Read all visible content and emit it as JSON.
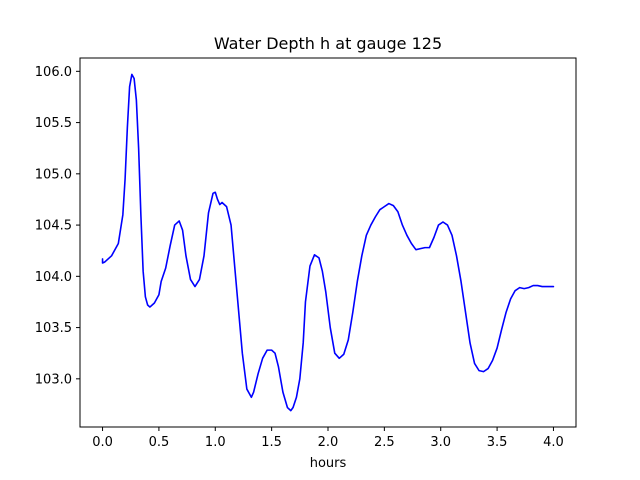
{
  "chart_data": {
    "type": "line",
    "title": "Water Depth h at gauge 125",
    "xlabel": "hours",
    "ylabel": "",
    "xlim": [
      -0.2,
      4.2
    ],
    "ylim": [
      102.53,
      106.13
    ],
    "xticks": [
      0.0,
      0.5,
      1.0,
      1.5,
      2.0,
      2.5,
      3.0,
      3.5,
      4.0
    ],
    "xtick_labels": [
      "0.0",
      "0.5",
      "1.0",
      "1.5",
      "2.0",
      "2.5",
      "3.0",
      "3.5",
      "4.0"
    ],
    "yticks": [
      103.0,
      103.5,
      104.0,
      104.5,
      105.0,
      105.5,
      106.0
    ],
    "ytick_labels": [
      "103.0",
      "103.5",
      "104.0",
      "104.5",
      "105.0",
      "105.5",
      "106.0"
    ],
    "grid": false,
    "legend": "none",
    "series": [
      {
        "color": "#0000ff",
        "x": [
          0.0,
          0.0,
          0.02,
          0.08,
          0.14,
          0.18,
          0.2,
          0.22,
          0.24,
          0.26,
          0.28,
          0.3,
          0.32,
          0.34,
          0.36,
          0.38,
          0.4,
          0.42,
          0.46,
          0.5,
          0.52,
          0.56,
          0.6,
          0.64,
          0.68,
          0.71,
          0.74,
          0.78,
          0.82,
          0.86,
          0.9,
          0.94,
          0.98,
          1.0,
          1.02,
          1.04,
          1.06,
          1.1,
          1.14,
          1.18,
          1.2,
          1.24,
          1.28,
          1.32,
          1.34,
          1.38,
          1.42,
          1.46,
          1.5,
          1.53,
          1.56,
          1.6,
          1.64,
          1.67,
          1.69,
          1.72,
          1.75,
          1.78,
          1.8,
          1.84,
          1.88,
          1.92,
          1.95,
          1.98,
          2.02,
          2.06,
          2.1,
          2.14,
          2.18,
          2.22,
          2.26,
          2.3,
          2.34,
          2.38,
          2.42,
          2.46,
          2.5,
          2.54,
          2.58,
          2.62,
          2.66,
          2.7,
          2.74,
          2.78,
          2.82,
          2.86,
          2.9,
          2.94,
          2.98,
          3.02,
          3.06,
          3.1,
          3.14,
          3.18,
          3.22,
          3.26,
          3.3,
          3.34,
          3.38,
          3.42,
          3.46,
          3.5,
          3.54,
          3.58,
          3.62,
          3.66,
          3.7,
          3.74,
          3.78,
          3.82,
          3.86,
          3.9,
          3.94,
          3.98,
          4.0
        ],
        "values": [
          104.17,
          104.13,
          104.14,
          104.2,
          104.32,
          104.6,
          104.95,
          105.45,
          105.85,
          105.97,
          105.93,
          105.72,
          105.25,
          104.6,
          104.05,
          103.8,
          103.72,
          103.7,
          103.74,
          103.82,
          103.95,
          104.08,
          104.3,
          104.5,
          104.54,
          104.45,
          104.2,
          103.97,
          103.9,
          103.97,
          104.2,
          104.62,
          104.81,
          104.82,
          104.75,
          104.7,
          104.72,
          104.68,
          104.5,
          104.0,
          103.75,
          103.25,
          102.9,
          102.82,
          102.87,
          103.05,
          103.2,
          103.28,
          103.28,
          103.25,
          103.12,
          102.87,
          102.72,
          102.69,
          102.72,
          102.82,
          103.0,
          103.35,
          103.75,
          104.1,
          104.21,
          104.18,
          104.05,
          103.85,
          103.5,
          103.25,
          103.2,
          103.24,
          103.38,
          103.65,
          103.95,
          104.2,
          104.4,
          104.5,
          104.58,
          104.65,
          104.68,
          104.71,
          104.69,
          104.63,
          104.5,
          104.4,
          104.32,
          104.26,
          104.27,
          104.28,
          104.28,
          104.38,
          104.5,
          104.53,
          104.5,
          104.4,
          104.2,
          103.95,
          103.65,
          103.35,
          103.15,
          103.08,
          103.07,
          103.1,
          103.18,
          103.3,
          103.48,
          103.65,
          103.78,
          103.86,
          103.89,
          103.88,
          103.89,
          103.91,
          103.91,
          103.9,
          103.9,
          103.9,
          103.9
        ]
      }
    ]
  }
}
